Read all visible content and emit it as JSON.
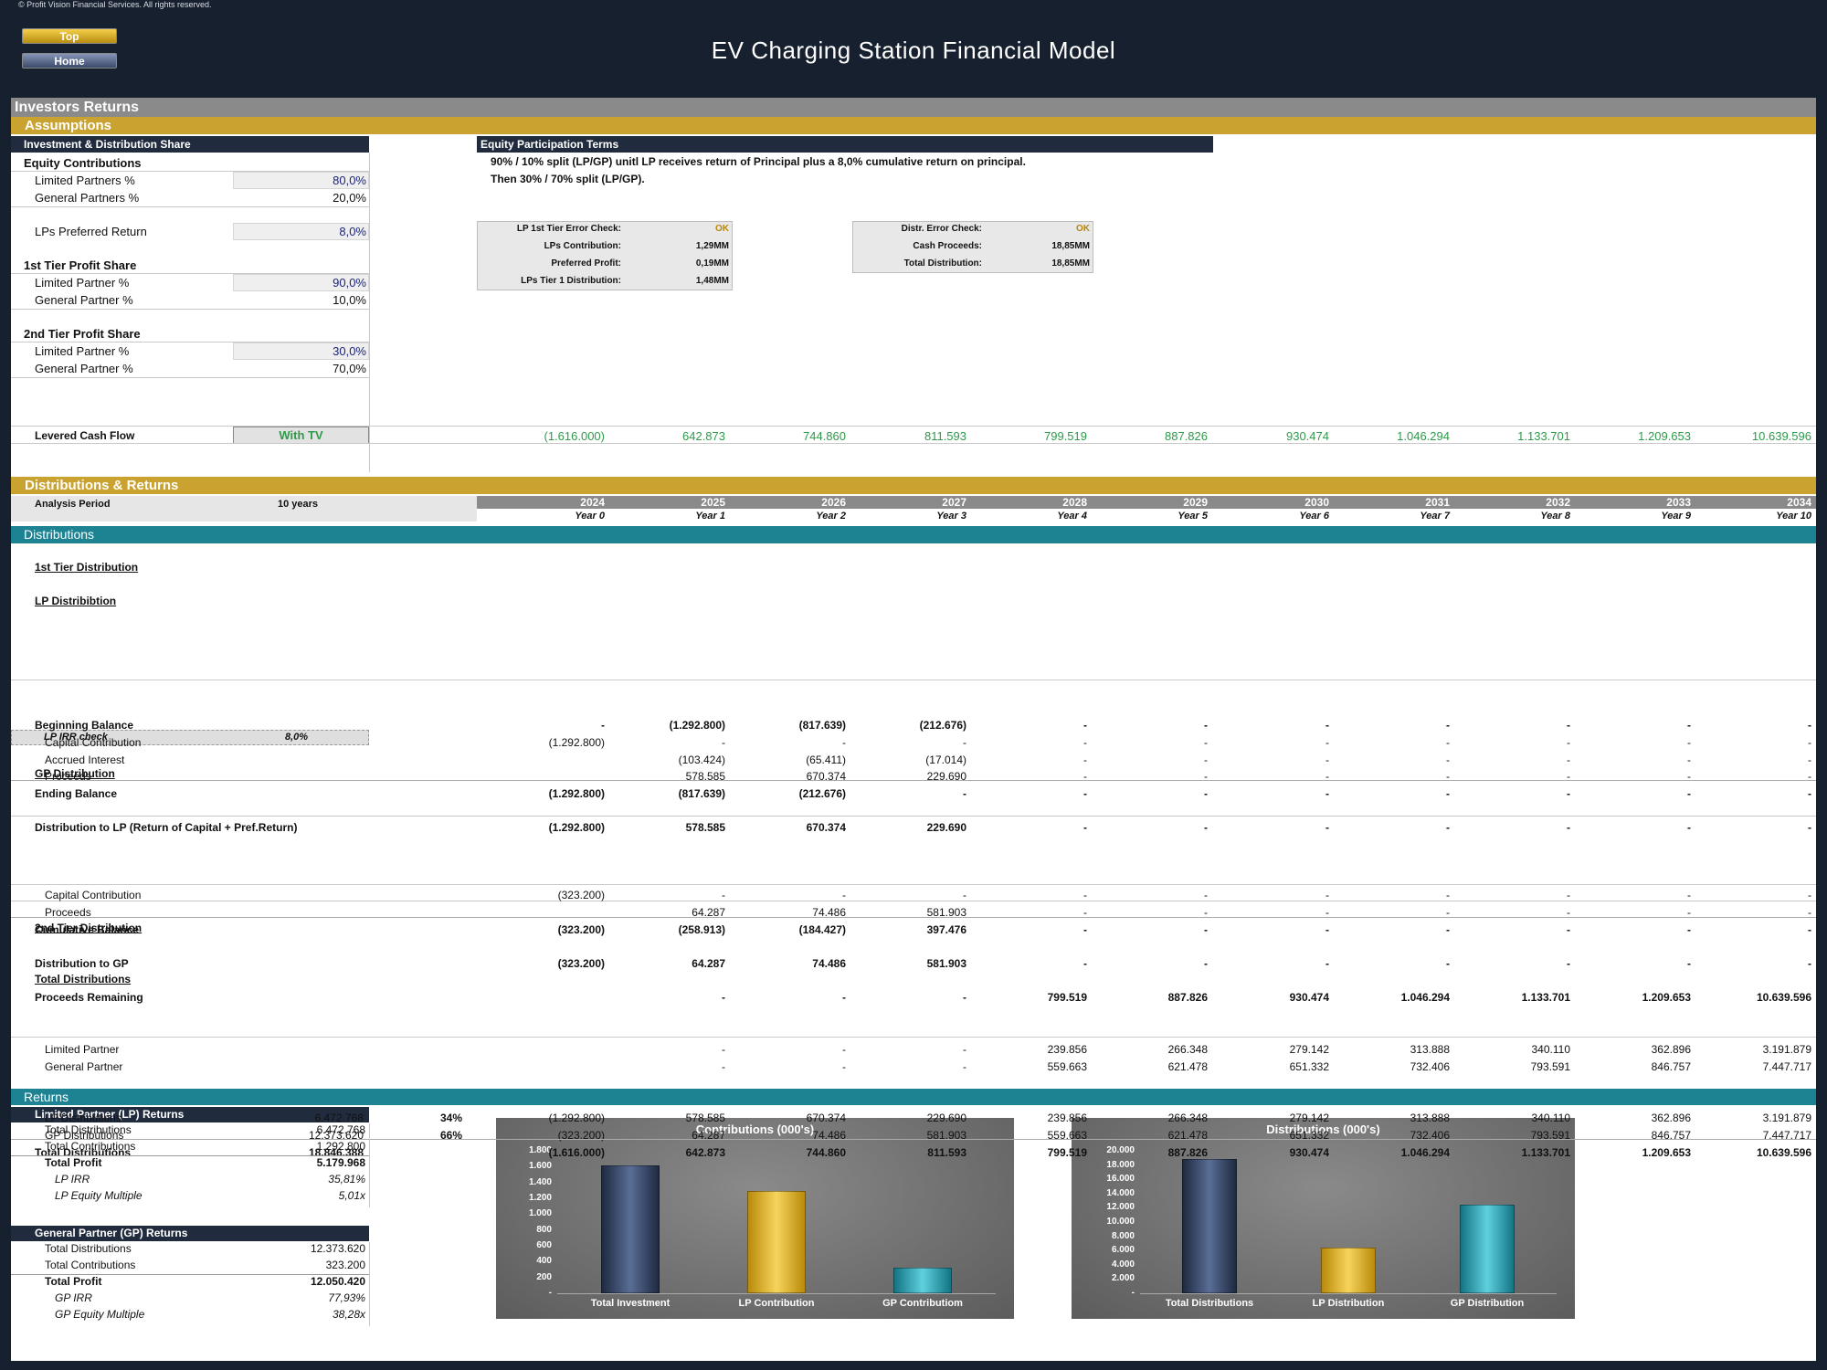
{
  "copyright": "© Profit Vision Financial Services. All rights reserved.",
  "nav": {
    "top": "Top",
    "home": "Home"
  },
  "title": "EV Charging Station Financial Model",
  "investors_returns": "Investors Returns",
  "assumptions": {
    "header": "Assumptions",
    "panel_title": "Investment & Distribution Share",
    "equity_contributions": "Equity Contributions",
    "limited_partners_label": "Limited Partners %",
    "limited_partners_value": "80,0%",
    "general_partners_label": "General Partners %",
    "general_partners_value": "20,0%",
    "pref_return_label": "LPs Preferred Return",
    "pref_return_value": "8,0%",
    "tier1_title": "1st Tier Profit Share",
    "tier1_lp_label": "Limited Partner %",
    "tier1_lp_value": "90,0%",
    "tier1_gp_label": "General Partner %",
    "tier1_gp_value": "10,0%",
    "tier2_title": "2nd Tier Profit Share",
    "tier2_lp_label": "Limited Partner %",
    "tier2_lp_value": "30,0%",
    "tier2_gp_label": "General Partner %",
    "tier2_gp_value": "70,0%"
  },
  "terms": {
    "title": "Equity Participation Terms",
    "line1": "90% / 10% split (LP/GP) unitl LP receives return of Principal plus a 8,0% cumulative return on principal.",
    "line2": "Then 30% / 70% split (LP/GP)."
  },
  "check1": [
    {
      "label": "LP 1st Tier Error Check:",
      "value": "OK"
    },
    {
      "label": "LPs Contribution:",
      "value": "1,29MM"
    },
    {
      "label": "Preferred Profit:",
      "value": "0,19MM"
    },
    {
      "label": "LPs Tier 1 Distribution:",
      "value": "1,48MM"
    }
  ],
  "check2": [
    {
      "label": "Distr. Error Check:",
      "value": "OK"
    },
    {
      "label": "Cash Proceeds:",
      "value": "18,85MM"
    },
    {
      "label": "Total Distribution:",
      "value": "18,85MM"
    }
  ],
  "levered": {
    "label": "Levered Cash Flow",
    "toggle": "With TV",
    "values": [
      "(1.616.000)",
      "642.873",
      "744.860",
      "811.593",
      "799.519",
      "887.826",
      "930.474",
      "1.046.294",
      "1.133.701",
      "1.209.653",
      "10.639.596"
    ]
  },
  "dist_header": "Distributions & Returns",
  "analysis_period_label": "Analysis Period",
  "analysis_period_value": "10 years",
  "years": [
    "2024",
    "2025",
    "2026",
    "2027",
    "2028",
    "2029",
    "2030",
    "2031",
    "2032",
    "2033",
    "2034"
  ],
  "year_labels": [
    "Year 0",
    "Year 1",
    "Year 2",
    "Year 3",
    "Year 4",
    "Year 5",
    "Year 6",
    "Year 7",
    "Year 8",
    "Year 9",
    "Year 10"
  ],
  "distributions_bar": "Distributions",
  "tier1_distribution": "1st Tier Distribution",
  "lp_distribution": "LP Distribibtion",
  "lp_irr_check_label": "LP IRR check",
  "lp_irr_check_value": "8,0%",
  "gp_distribution": "GP Distribution",
  "tier2_distribution": "2nd Tier Distribution",
  "total_distributions_title": "Total Distributions",
  "rows": [
    {
      "label": "Beginning Balance",
      "bold": true,
      "indent": 0,
      "top": 680,
      "values": [
        "-",
        "(1.292.800)",
        "(817.639)",
        "(212.676)",
        "-",
        "-",
        "-",
        "-",
        "-",
        "-",
        "-"
      ]
    },
    {
      "label": "Capital Contribution",
      "indent": 1,
      "top": 699,
      "values": [
        "(1.292.800)",
        "-",
        "-",
        "-",
        "-",
        "-",
        "-",
        "-",
        "-",
        "-",
        "-"
      ]
    },
    {
      "label": "Accrued Interest",
      "indent": 1,
      "top": 718,
      "values": [
        "",
        "(103.424)",
        "(65.411)",
        "(17.014)",
        "-",
        "-",
        "-",
        "-",
        "-",
        "-",
        "-"
      ]
    },
    {
      "label": "Proceeds",
      "indent": 1,
      "top": 736,
      "values": [
        "",
        "578.585",
        "670.374",
        "229.690",
        "-",
        "-",
        "-",
        "-",
        "-",
        "-",
        "-"
      ]
    },
    {
      "label": "Ending Balance",
      "bold": true,
      "indent": 0,
      "top": 755,
      "values": [
        "(1.292.800)",
        "(817.639)",
        "(212.676)",
        "-",
        "-",
        "-",
        "-",
        "-",
        "-",
        "-",
        "-"
      ]
    },
    {
      "label": "Distribution to LP (Return of Capital + Pref.Return)",
      "bold": true,
      "indent": 0,
      "top": 792,
      "values": [
        "(1.292.800)",
        "578.585",
        "670.374",
        "229.690",
        "-",
        "-",
        "-",
        "-",
        "-",
        "-",
        "-"
      ]
    },
    {
      "label": "Capital Contribution",
      "indent": 1,
      "top": 866,
      "values": [
        "(323.200)",
        "-",
        "-",
        "-",
        "-",
        "-",
        "-",
        "-",
        "-",
        "-",
        "-"
      ]
    },
    {
      "label": "Proceeds",
      "indent": 1,
      "top": 885,
      "values": [
        "",
        "64.287",
        "74.486",
        "581.903",
        "-",
        "-",
        "-",
        "-",
        "-",
        "-",
        "-"
      ]
    },
    {
      "label": "Cumulative Balance",
      "bold": true,
      "indent": 0,
      "top": 904,
      "values": [
        "(323.200)",
        "(258.913)",
        "(184.427)",
        "397.476",
        "-",
        "-",
        "-",
        "-",
        "-",
        "-",
        "-"
      ]
    },
    {
      "label": "Distribution to GP",
      "bold": true,
      "indent": 0,
      "top": 941,
      "values": [
        "(323.200)",
        "64.287",
        "74.486",
        "581.903",
        "-",
        "-",
        "-",
        "-",
        "-",
        "-",
        "-"
      ]
    },
    {
      "label": "Proceeds Remaining",
      "bold": true,
      "indent": 0,
      "top": 978,
      "values": [
        "",
        "-",
        "-",
        "-",
        "799.519",
        "887.826",
        "930.474",
        "1.046.294",
        "1.133.701",
        "1.209.653",
        "10.639.596"
      ]
    },
    {
      "label": "Limited Partner",
      "indent": 1,
      "top": 1035,
      "values": [
        "",
        "-",
        "-",
        "-",
        "239.856",
        "266.348",
        "279.142",
        "313.888",
        "340.110",
        "362.896",
        "3.191.879"
      ]
    },
    {
      "label": "General Partner",
      "indent": 1,
      "top": 1054,
      "values": [
        "",
        "-",
        "-",
        "-",
        "559.663",
        "621.478",
        "651.332",
        "732.406",
        "793.591",
        "846.757",
        "7.447.717"
      ]
    },
    {
      "label": "LP Distributions",
      "indent": 1,
      "top": 1110,
      "total": "6.472.768",
      "pct": "34%",
      "values": [
        "(1.292.800)",
        "578.585",
        "670.374",
        "229.690",
        "239.856",
        "266.348",
        "279.142",
        "313.888",
        "340.110",
        "362.896",
        "3.191.879"
      ]
    },
    {
      "label": "GP Distributions",
      "indent": 1,
      "top": 1129,
      "total": "12.373.620",
      "pct": "66%",
      "values": [
        "(323.200)",
        "64.287",
        "74.486",
        "581.903",
        "559.663",
        "621.478",
        "651.332",
        "732.406",
        "793.591",
        "846.757",
        "7.447.717"
      ]
    },
    {
      "label": "Total Distributions",
      "bold": true,
      "indent": 0,
      "top": 1148,
      "total": "18.846.388",
      "values": [
        "(1.616.000)",
        "642.873",
        "744.860",
        "811.593",
        "799.519",
        "887.826",
        "930.474",
        "1.046.294",
        "1.133.701",
        "1.209.653",
        "10.639.596"
      ]
    }
  ],
  "returns_bar": "Returns",
  "lp_returns": {
    "title": "Limited Partner (LP) Returns",
    "rows": [
      {
        "label": "Total Distributions",
        "value": "6.472.768"
      },
      {
        "label": "Total Contributions",
        "value": "1.292.800"
      },
      {
        "label": "Total Profit",
        "value": "5.179.968",
        "bold": true
      },
      {
        "label": "LP IRR",
        "value": "35,81%",
        "italic": true
      },
      {
        "label": "LP Equity Multiple",
        "value": "5,01x",
        "italic": true
      }
    ]
  },
  "gp_returns": {
    "title": "General Partner (GP) Returns",
    "rows": [
      {
        "label": "Total Distributions",
        "value": "12.373.620"
      },
      {
        "label": "Total Contributions",
        "value": "323.200"
      },
      {
        "label": "Total Profit",
        "value": "12.050.420",
        "bold": true
      },
      {
        "label": "GP IRR",
        "value": "77,93%",
        "italic": true
      },
      {
        "label": "GP Equity Multiple",
        "value": "38,28x",
        "italic": true
      }
    ]
  },
  "colors": {
    "navy": "#2e3b55",
    "gold": "#e8b923",
    "teal": "#2aa7b8"
  },
  "chart_data": [
    {
      "type": "bar",
      "title": "Contributions (000's)",
      "categories": [
        "Total Investment",
        "LP Contribution",
        "GP Contributiom"
      ],
      "values": [
        1616,
        1293,
        323
      ],
      "ylim": [
        0,
        1800
      ],
      "yticks": [
        "-",
        "200",
        "400",
        "600",
        "800",
        "1.000",
        "1.200",
        "1.400",
        "1.600",
        "1.800"
      ],
      "grid": false,
      "legend": "none"
    },
    {
      "type": "bar",
      "title": "Distributions (000's)",
      "categories": [
        "Total Distributions",
        "LP Distribution",
        "GP Distribution"
      ],
      "values": [
        18846,
        6473,
        12374
      ],
      "ylim": [
        0,
        20000
      ],
      "yticks": [
        "-",
        "2.000",
        "4.000",
        "6.000",
        "8.000",
        "10.000",
        "12.000",
        "14.000",
        "16.000",
        "18.000",
        "20.000"
      ],
      "grid": false,
      "legend": "none"
    }
  ]
}
